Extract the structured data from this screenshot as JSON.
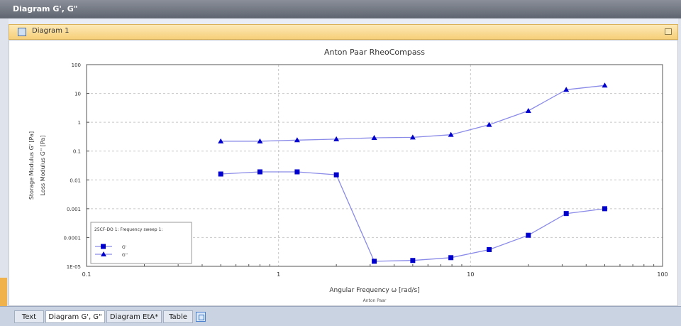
{
  "window": {
    "title": "Diagram G', G\""
  },
  "panel": {
    "title": "Diagram 1"
  },
  "tabs": [
    {
      "label": "Text",
      "active": false
    },
    {
      "label": "Diagram G', G\"",
      "active": true
    },
    {
      "label": "Diagram EtA*",
      "active": false
    },
    {
      "label": "Table",
      "active": false
    }
  ],
  "colors": {
    "series": "#0000cc",
    "line": "#8a8ae8",
    "accent": "#f6cf78"
  },
  "chart_data": {
    "type": "scatter",
    "title": "Anton Paar RheoCompass",
    "xlabel": "Angular Frequency ω [rad/s]",
    "xlabel_sub": "Anton Paar",
    "ylabel": "Storage Modulus G' [Pa]",
    "ylabel2": "Loss Modulus G'' [Pa]",
    "xscale": "log",
    "yscale": "log",
    "xlim": [
      0.1,
      100
    ],
    "ylim": [
      1e-05,
      100
    ],
    "x_ticks": [
      "0.1",
      "1",
      "10",
      "100"
    ],
    "y_ticks": [
      "1E-05",
      "0.0001",
      "0.001",
      "0.01",
      "0.1",
      "1",
      "10",
      "100"
    ],
    "grid": true,
    "legend": {
      "title": "25CF-DO 1: Frequency sweep 1:",
      "position": "bottom-left"
    },
    "series": [
      {
        "name": "G'",
        "marker": "square",
        "x": [
          0.5,
          0.8,
          1.25,
          2.0,
          3.15,
          5.0,
          7.9,
          12.5,
          20,
          31.5,
          50
        ],
        "y": [
          0.016,
          0.019,
          0.019,
          0.015,
          1.5e-05,
          1.6e-05,
          2e-05,
          3.8e-05,
          0.00012,
          0.00068,
          0.001
        ]
      },
      {
        "name": "G''",
        "marker": "triangle",
        "x": [
          0.5,
          0.8,
          1.25,
          2.0,
          3.15,
          5.0,
          7.9,
          12.5,
          20,
          31.5,
          50
        ],
        "y": [
          0.22,
          0.22,
          0.24,
          0.26,
          0.29,
          0.3,
          0.37,
          0.82,
          2.5,
          13.5,
          19
        ]
      }
    ]
  }
}
